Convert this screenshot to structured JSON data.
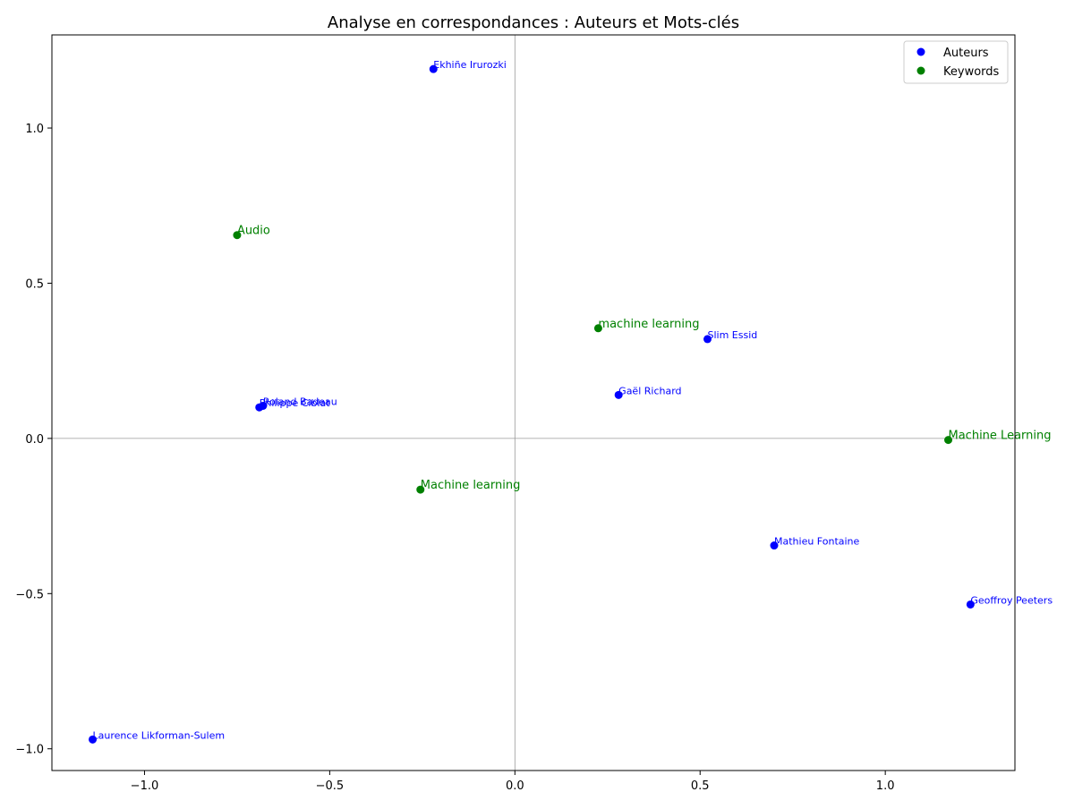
{
  "chart_data": {
    "type": "scatter",
    "title": "Analyse en correspondances : Auteurs et Mots-clés",
    "xlabel": "",
    "ylabel": "",
    "xlim": [
      -1.25,
      1.35
    ],
    "ylim": [
      -1.07,
      1.3
    ],
    "xticks": [
      -1.0,
      -0.5,
      0.0,
      0.5,
      1.0
    ],
    "xtick_labels": [
      "−1.0",
      "−0.5",
      "0.0",
      "0.5",
      "1.0"
    ],
    "yticks": [
      -1.0,
      -0.5,
      0.0,
      0.5,
      1.0
    ],
    "ytick_labels": [
      "−1.0",
      "−0.5",
      "0.0",
      "0.5",
      "1.0"
    ],
    "grid": false,
    "reference_lines": {
      "x": 0,
      "y": 0
    },
    "legend_position": "top-right",
    "series": [
      {
        "name": "Auteurs",
        "color": "#0000ff",
        "points": [
          {
            "x": -0.22,
            "y": 1.19,
            "label": "Ekhiñe Irurozki"
          },
          {
            "x": 0.52,
            "y": 0.32,
            "label": "Slim Essid"
          },
          {
            "x": 0.28,
            "y": 0.14,
            "label": "Gaël Richard"
          },
          {
            "x": -0.68,
            "y": 0.105,
            "label": "Roland Badeau"
          },
          {
            "x": -0.69,
            "y": 0.1,
            "label": "Philippe Ciblat"
          },
          {
            "x": 0.7,
            "y": -0.345,
            "label": "Mathieu Fontaine"
          },
          {
            "x": 1.23,
            "y": -0.535,
            "label": "Geoffroy Peeters"
          },
          {
            "x": -1.14,
            "y": -0.97,
            "label": "Laurence Likforman-Sulem"
          }
        ]
      },
      {
        "name": "Keywords",
        "color": "#008000",
        "points": [
          {
            "x": -0.75,
            "y": 0.655,
            "label": "Audio"
          },
          {
            "x": 0.225,
            "y": 0.355,
            "label": "machine learning"
          },
          {
            "x": 1.17,
            "y": -0.005,
            "label": "Machine Learning"
          },
          {
            "x": -0.255,
            "y": -0.165,
            "label": "Machine learning"
          }
        ]
      }
    ]
  }
}
